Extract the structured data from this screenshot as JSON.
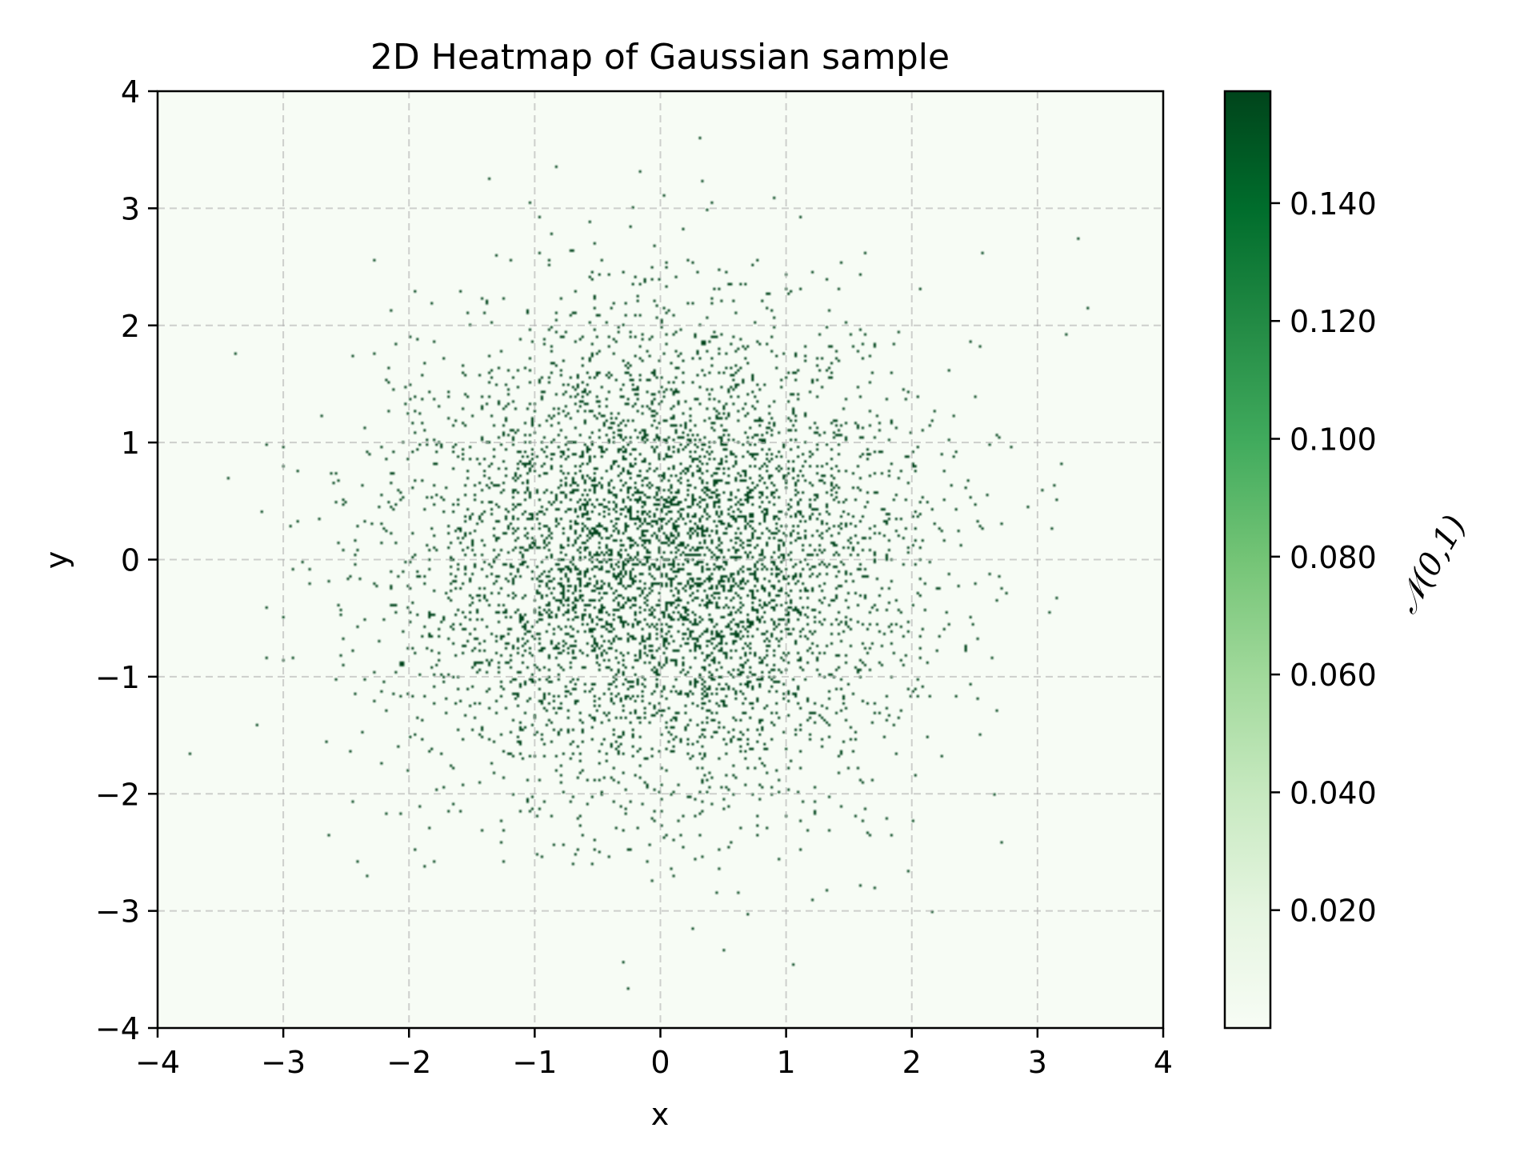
{
  "chart_data": {
    "type": "heatmap",
    "title": "2D Heatmap of Gaussian sample",
    "xlabel": "x",
    "ylabel": "y",
    "xlim": [
      -4,
      4
    ],
    "ylim": [
      -4,
      4
    ],
    "x_ticks": [
      -4,
      -3,
      -2,
      -1,
      0,
      1,
      2,
      3,
      4
    ],
    "y_ticks": [
      -4,
      -3,
      -2,
      -1,
      0,
      1,
      2,
      3,
      4
    ],
    "x_tick_labels": [
      "−4",
      "−3",
      "−2",
      "−1",
      "0",
      "1",
      "2",
      "3",
      "4"
    ],
    "y_tick_labels": [
      "−4",
      "−3",
      "−2",
      "−1",
      "0",
      "1",
      "2",
      "3",
      "4"
    ],
    "grid": true,
    "distribution": {
      "mean": [
        0,
        0
      ],
      "std": [
        1,
        1
      ]
    },
    "colorbar": {
      "label": "𝒩(0,1)",
      "cmap": "Greens",
      "range": [
        0.0,
        0.159
      ],
      "ticks": [
        0.02,
        0.04,
        0.06,
        0.08,
        0.1,
        0.12,
        0.14
      ],
      "tick_labels": [
        "0.020",
        "0.040",
        "0.060",
        "0.080",
        "0.100",
        "0.120",
        "0.140"
      ]
    },
    "colors": {
      "low": "#f7fcf5",
      "high": "#00441b",
      "grid": "#b0b0b0"
    }
  }
}
